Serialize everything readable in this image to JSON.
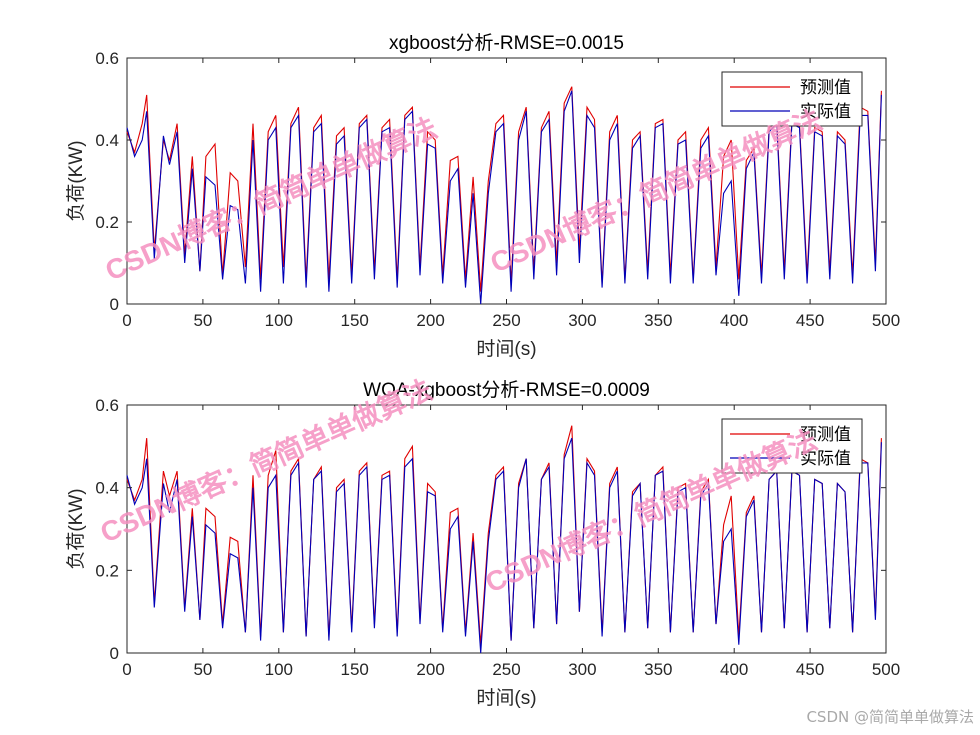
{
  "colors": {
    "predicted": "#e00000",
    "actual": "#0000b8",
    "watermark": "#f48fc0",
    "axis": "#262626",
    "credit": "#a9a9a9"
  },
  "watermark_text": "CSDN博客：简简单单做算法",
  "credit_text": "CSDN @简简单单做算法",
  "chart_data": [
    {
      "type": "line",
      "title": "xgboost分析-RMSE=0.0015",
      "xlabel": "时间(s)",
      "ylabel": "负荷(KW)",
      "xlim": [
        0,
        500
      ],
      "ylim": [
        0,
        0.6
      ],
      "xticks": [
        0,
        50,
        100,
        150,
        200,
        250,
        300,
        350,
        400,
        450,
        500
      ],
      "yticks": [
        0,
        0.2,
        0.4,
        0.6
      ],
      "grid": false,
      "legend_position": "top-right",
      "series": [
        {
          "name": "预测值",
          "x": [
            0,
            5,
            10,
            13,
            18,
            24,
            28,
            33,
            38,
            43,
            48,
            52,
            58,
            63,
            68,
            73,
            78,
            83,
            88,
            93,
            98,
            103,
            108,
            113,
            118,
            123,
            128,
            133,
            138,
            143,
            148,
            153,
            158,
            163,
            168,
            173,
            178,
            183,
            188,
            193,
            198,
            203,
            208,
            213,
            218,
            223,
            228,
            233,
            238,
            243,
            248,
            253,
            258,
            263,
            268,
            273,
            278,
            283,
            288,
            293,
            298,
            303,
            308,
            313,
            318,
            323,
            328,
            333,
            338,
            343,
            348,
            353,
            358,
            363,
            368,
            373,
            378,
            383,
            388,
            393,
            398,
            403,
            408,
            413,
            418,
            423,
            428,
            433,
            438,
            443,
            448,
            453,
            458,
            463,
            468,
            473,
            478,
            483,
            488,
            493,
            497
          ],
          "values": [
            0.42,
            0.37,
            0.44,
            0.51,
            0.13,
            0.4,
            0.35,
            0.44,
            0.12,
            0.36,
            0.08,
            0.36,
            0.39,
            0.07,
            0.32,
            0.3,
            0.09,
            0.44,
            0.06,
            0.42,
            0.46,
            0.09,
            0.44,
            0.48,
            0.06,
            0.43,
            0.46,
            0.06,
            0.41,
            0.43,
            0.07,
            0.44,
            0.46,
            0.08,
            0.43,
            0.45,
            0.06,
            0.46,
            0.48,
            0.09,
            0.42,
            0.4,
            0.07,
            0.35,
            0.36,
            0.06,
            0.31,
            0.03,
            0.3,
            0.44,
            0.46,
            0.05,
            0.42,
            0.48,
            0.08,
            0.43,
            0.47,
            0.1,
            0.49,
            0.53,
            0.13,
            0.48,
            0.45,
            0.05,
            0.42,
            0.46,
            0.06,
            0.4,
            0.42,
            0.08,
            0.44,
            0.45,
            0.07,
            0.4,
            0.42,
            0.06,
            0.4,
            0.43,
            0.09,
            0.36,
            0.4,
            0.06,
            0.35,
            0.38,
            0.07,
            0.43,
            0.45,
            0.08,
            0.45,
            0.44,
            0.07,
            0.43,
            0.42,
            0.08,
            0.42,
            0.4,
            0.07,
            0.48,
            0.47,
            0.1,
            0.52
          ]
        },
        {
          "name": "实际值",
          "x": [
            0,
            5,
            10,
            13,
            18,
            24,
            28,
            33,
            38,
            43,
            48,
            52,
            58,
            63,
            68,
            73,
            78,
            83,
            88,
            93,
            98,
            103,
            108,
            113,
            118,
            123,
            128,
            133,
            138,
            143,
            148,
            153,
            158,
            163,
            168,
            173,
            178,
            183,
            188,
            193,
            198,
            203,
            208,
            213,
            218,
            223,
            228,
            233,
            238,
            243,
            248,
            253,
            258,
            263,
            268,
            273,
            278,
            283,
            288,
            293,
            298,
            303,
            308,
            313,
            318,
            323,
            328,
            333,
            338,
            343,
            348,
            353,
            358,
            363,
            368,
            373,
            378,
            383,
            388,
            393,
            398,
            403,
            408,
            413,
            418,
            423,
            428,
            433,
            438,
            443,
            448,
            453,
            458,
            463,
            468,
            473,
            478,
            483,
            488,
            493,
            497
          ],
          "values": [
            0.43,
            0.36,
            0.4,
            0.47,
            0.11,
            0.41,
            0.34,
            0.42,
            0.1,
            0.33,
            0.08,
            0.31,
            0.29,
            0.06,
            0.24,
            0.23,
            0.05,
            0.4,
            0.03,
            0.4,
            0.43,
            0.05,
            0.43,
            0.46,
            0.04,
            0.42,
            0.44,
            0.03,
            0.39,
            0.41,
            0.05,
            0.43,
            0.45,
            0.06,
            0.42,
            0.43,
            0.04,
            0.45,
            0.47,
            0.07,
            0.39,
            0.38,
            0.05,
            0.3,
            0.33,
            0.04,
            0.27,
            0.0,
            0.27,
            0.42,
            0.44,
            0.03,
            0.4,
            0.47,
            0.06,
            0.42,
            0.45,
            0.07,
            0.47,
            0.52,
            0.1,
            0.46,
            0.43,
            0.04,
            0.4,
            0.44,
            0.05,
            0.38,
            0.41,
            0.06,
            0.43,
            0.44,
            0.05,
            0.39,
            0.4,
            0.05,
            0.38,
            0.41,
            0.07,
            0.27,
            0.3,
            0.02,
            0.33,
            0.37,
            0.05,
            0.42,
            0.44,
            0.06,
            0.44,
            0.43,
            0.05,
            0.42,
            0.41,
            0.06,
            0.41,
            0.39,
            0.05,
            0.46,
            0.46,
            0.08,
            0.51
          ]
        }
      ]
    },
    {
      "type": "line",
      "title": "WOA-xgboost分析-RMSE=0.0009",
      "xlabel": "时间(s)",
      "ylabel": "负荷(KW)",
      "xlim": [
        0,
        500
      ],
      "ylim": [
        0,
        0.6
      ],
      "xticks": [
        0,
        50,
        100,
        150,
        200,
        250,
        300,
        350,
        400,
        450,
        500
      ],
      "yticks": [
        0,
        0.2,
        0.4,
        0.6
      ],
      "grid": false,
      "legend_position": "top-right",
      "series": [
        {
          "name": "预测值",
          "x": [
            0,
            5,
            10,
            13,
            18,
            24,
            28,
            33,
            38,
            43,
            48,
            52,
            58,
            63,
            68,
            73,
            78,
            83,
            88,
            93,
            98,
            103,
            108,
            113,
            118,
            123,
            128,
            133,
            138,
            143,
            148,
            153,
            158,
            163,
            168,
            173,
            178,
            183,
            188,
            193,
            198,
            203,
            208,
            213,
            218,
            223,
            228,
            233,
            238,
            243,
            248,
            253,
            258,
            263,
            268,
            273,
            278,
            283,
            288,
            293,
            298,
            303,
            308,
            313,
            318,
            323,
            328,
            333,
            338,
            343,
            348,
            353,
            358,
            363,
            368,
            373,
            378,
            383,
            388,
            393,
            398,
            403,
            408,
            413,
            418,
            423,
            428,
            433,
            438,
            443,
            448,
            453,
            458,
            463,
            468,
            473,
            478,
            483,
            488,
            493,
            497
          ],
          "values": [
            0.42,
            0.37,
            0.42,
            0.52,
            0.12,
            0.44,
            0.38,
            0.44,
            0.11,
            0.35,
            0.08,
            0.35,
            0.33,
            0.07,
            0.28,
            0.27,
            0.05,
            0.43,
            0.04,
            0.43,
            0.49,
            0.05,
            0.44,
            0.47,
            0.04,
            0.42,
            0.45,
            0.04,
            0.4,
            0.42,
            0.06,
            0.44,
            0.46,
            0.07,
            0.43,
            0.44,
            0.05,
            0.47,
            0.5,
            0.08,
            0.41,
            0.39,
            0.06,
            0.34,
            0.35,
            0.05,
            0.29,
            0.02,
            0.29,
            0.43,
            0.45,
            0.03,
            0.41,
            0.47,
            0.06,
            0.42,
            0.46,
            0.07,
            0.48,
            0.55,
            0.1,
            0.47,
            0.44,
            0.05,
            0.41,
            0.45,
            0.05,
            0.39,
            0.41,
            0.06,
            0.43,
            0.45,
            0.05,
            0.4,
            0.41,
            0.05,
            0.39,
            0.42,
            0.07,
            0.31,
            0.38,
            0.04,
            0.34,
            0.38,
            0.05,
            0.42,
            0.44,
            0.06,
            0.44,
            0.43,
            0.05,
            0.42,
            0.41,
            0.06,
            0.41,
            0.39,
            0.05,
            0.47,
            0.46,
            0.09,
            0.52
          ]
        },
        {
          "name": "实际值",
          "x": [
            0,
            5,
            10,
            13,
            18,
            24,
            28,
            33,
            38,
            43,
            48,
            52,
            58,
            63,
            68,
            73,
            78,
            83,
            88,
            93,
            98,
            103,
            108,
            113,
            118,
            123,
            128,
            133,
            138,
            143,
            148,
            153,
            158,
            163,
            168,
            173,
            178,
            183,
            188,
            193,
            198,
            203,
            208,
            213,
            218,
            223,
            228,
            233,
            238,
            243,
            248,
            253,
            258,
            263,
            268,
            273,
            278,
            283,
            288,
            293,
            298,
            303,
            308,
            313,
            318,
            323,
            328,
            333,
            338,
            343,
            348,
            353,
            358,
            363,
            368,
            373,
            378,
            383,
            388,
            393,
            398,
            403,
            408,
            413,
            418,
            423,
            428,
            433,
            438,
            443,
            448,
            453,
            458,
            463,
            468,
            473,
            478,
            483,
            488,
            493,
            497
          ],
          "values": [
            0.43,
            0.36,
            0.4,
            0.47,
            0.11,
            0.41,
            0.34,
            0.42,
            0.1,
            0.33,
            0.08,
            0.31,
            0.29,
            0.06,
            0.24,
            0.23,
            0.05,
            0.4,
            0.03,
            0.4,
            0.43,
            0.05,
            0.43,
            0.46,
            0.04,
            0.42,
            0.44,
            0.03,
            0.39,
            0.41,
            0.05,
            0.43,
            0.45,
            0.06,
            0.42,
            0.43,
            0.04,
            0.45,
            0.47,
            0.07,
            0.39,
            0.38,
            0.05,
            0.3,
            0.33,
            0.04,
            0.27,
            0.0,
            0.27,
            0.42,
            0.44,
            0.03,
            0.4,
            0.47,
            0.06,
            0.42,
            0.45,
            0.07,
            0.47,
            0.52,
            0.1,
            0.46,
            0.43,
            0.04,
            0.4,
            0.44,
            0.05,
            0.38,
            0.41,
            0.06,
            0.43,
            0.44,
            0.05,
            0.39,
            0.4,
            0.05,
            0.38,
            0.41,
            0.07,
            0.27,
            0.3,
            0.02,
            0.33,
            0.37,
            0.05,
            0.42,
            0.44,
            0.06,
            0.44,
            0.43,
            0.05,
            0.42,
            0.41,
            0.06,
            0.41,
            0.39,
            0.05,
            0.46,
            0.46,
            0.08,
            0.51
          ]
        }
      ]
    }
  ]
}
